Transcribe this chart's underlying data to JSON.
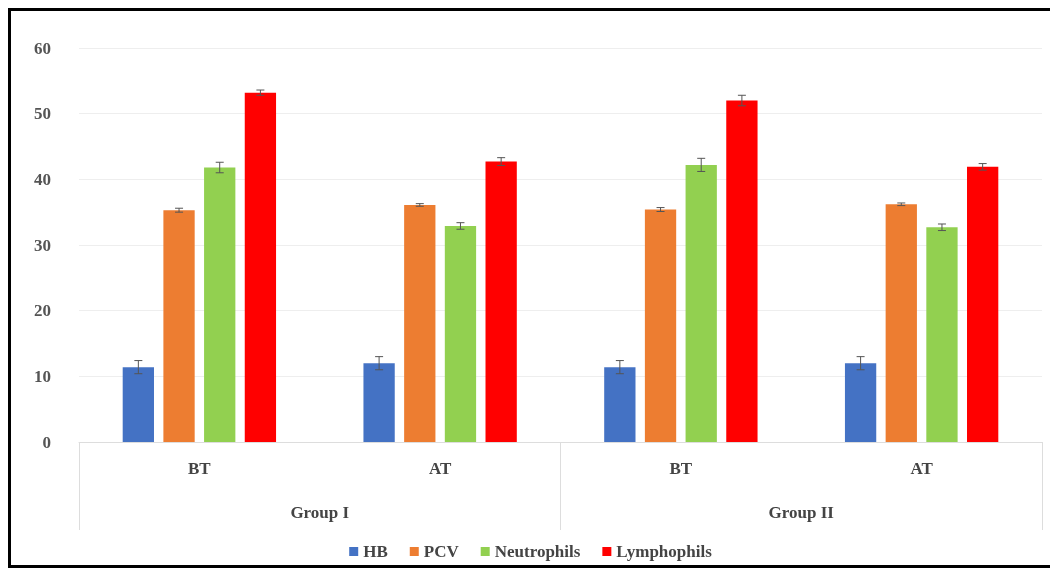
{
  "chart_data": {
    "type": "bar",
    "categories": [
      "BT",
      "AT",
      "BT",
      "AT"
    ],
    "annotations": [
      "Group I",
      "Group II"
    ],
    "series": [
      {
        "name": "HB",
        "color": "#4472c4",
        "values": [
          11.4,
          12,
          11.4,
          12
        ],
        "errors": [
          1,
          1,
          1,
          1
        ]
      },
      {
        "name": "PCV",
        "color": "#ed7d31",
        "values": [
          35.3,
          36.1,
          35.4,
          36.2
        ],
        "errors": [
          0.3,
          0.2,
          0.3,
          0.2
        ]
      },
      {
        "name": "Neutrophils",
        "color": "#92d050",
        "values": [
          41.8,
          32.9,
          42.2,
          32.7
        ],
        "errors": [
          0.8,
          0.5,
          1,
          0.5
        ]
      },
      {
        "name": "Lymphophils",
        "color": "#ff0000",
        "values": [
          53.2,
          42.7,
          52,
          41.9
        ],
        "errors": [
          0.4,
          0.6,
          0.8,
          0.5
        ]
      }
    ],
    "ylim": [
      0,
      60
    ],
    "yticks": [
      0,
      10,
      20,
      30,
      40,
      50,
      60
    ],
    "grid": "y",
    "legend": "bottom"
  }
}
